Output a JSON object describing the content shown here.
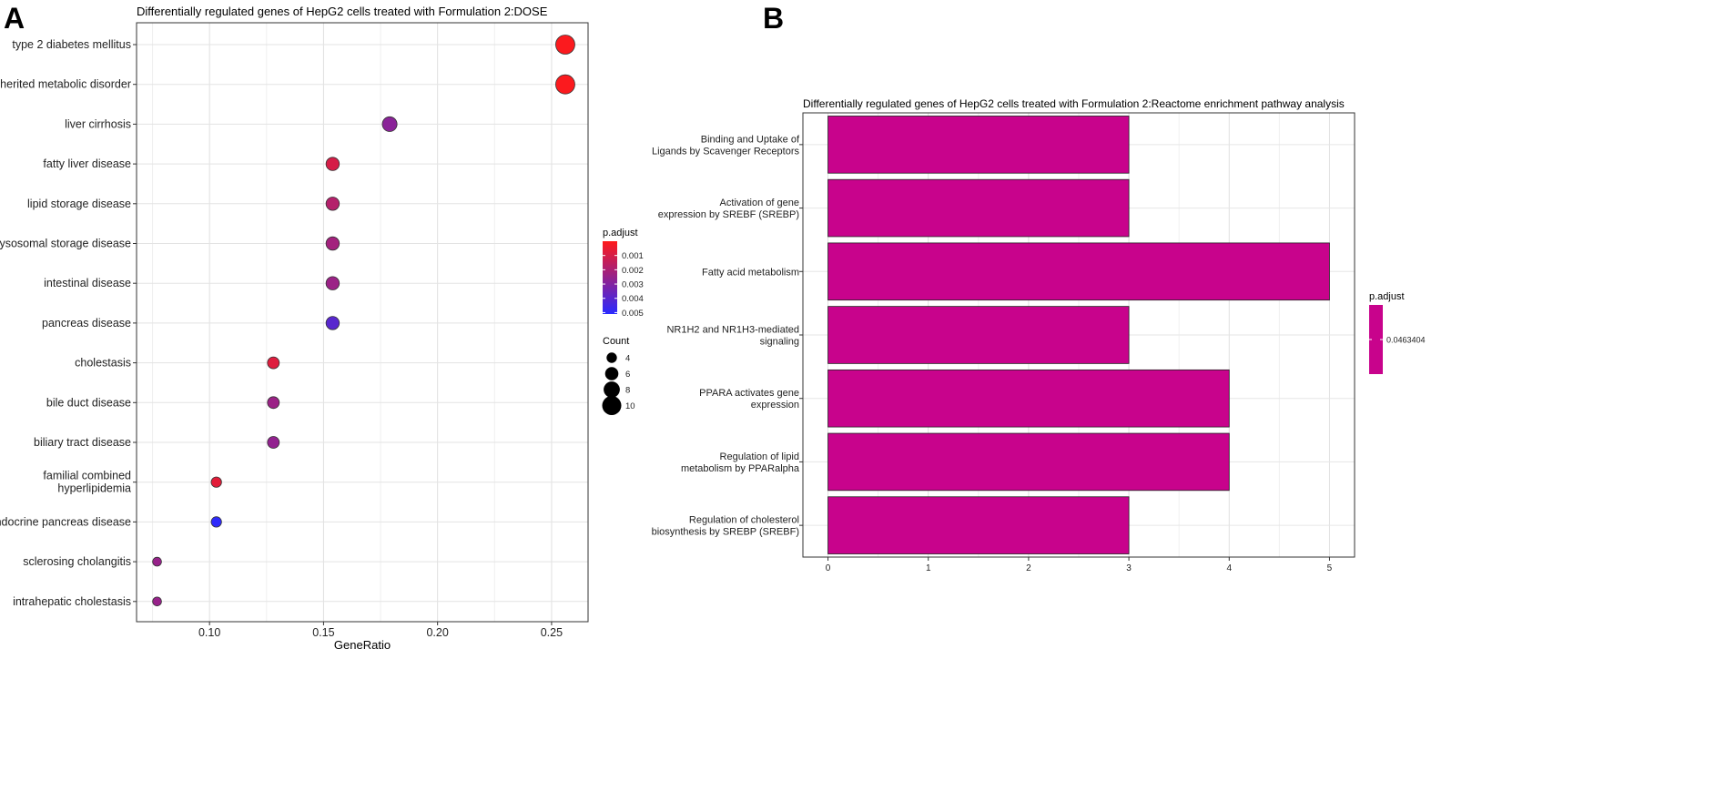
{
  "panels": {
    "a_label": "A",
    "b_label": "B"
  },
  "chart_data": [
    {
      "type": "scatter",
      "title": "Differentially regulated genes of HepG2 cells treated with Formulation 2:DOSE",
      "xlabel": "GeneRatio",
      "ylabel": "",
      "xlim": [
        0.068,
        0.266
      ],
      "xticks": [
        0.1,
        0.15,
        0.2,
        0.25
      ],
      "xtick_labels": [
        "0.10",
        "0.15",
        "0.20",
        "0.25"
      ],
      "categories": [
        "type 2 diabetes mellitus",
        "inherited metabolic disorder",
        "liver cirrhosis",
        "fatty liver disease",
        "lipid storage disease",
        "lysosomal storage disease",
        "intestinal disease",
        "pancreas disease",
        "cholestasis",
        "bile duct disease",
        "biliary tract disease",
        "familial combined\nhyperlipidemia",
        "endocrine pancreas disease",
        "sclerosing cholangitis",
        "intrahepatic cholestasis"
      ],
      "gene_ratio": [
        0.256,
        0.256,
        0.179,
        0.154,
        0.154,
        0.154,
        0.154,
        0.154,
        0.128,
        0.128,
        0.128,
        0.103,
        0.103,
        0.077,
        0.077
      ],
      "count": [
        10,
        10,
        7,
        6,
        6,
        6,
        6,
        6,
        5,
        5,
        5,
        4,
        4,
        3,
        3
      ],
      "p_adjust": [
        0.0001,
        0.0001,
        0.0028,
        0.001,
        0.0018,
        0.0022,
        0.0024,
        0.004,
        0.0008,
        0.0024,
        0.0026,
        0.0007,
        0.005,
        0.0025,
        0.0025
      ],
      "color_legend": {
        "title": "p.adjust",
        "ticks": [
          0.001,
          0.002,
          0.003,
          0.004,
          0.005
        ],
        "tick_labels": [
          "0.001",
          "0.002",
          "0.003",
          "0.004",
          "0.005"
        ],
        "range": [
          0.0,
          0.0051
        ],
        "low_color": "#ff1a1a",
        "high_color": "#2a2aff"
      },
      "size_legend": {
        "title": "Count",
        "values": [
          4,
          6,
          8,
          10
        ],
        "labels": [
          "4",
          "6",
          "8",
          "10"
        ]
      },
      "legend_position": "right",
      "grid": true
    },
    {
      "type": "bar",
      "orientation": "horizontal",
      "title": "Differentially regulated genes of HepG2 cells treated with Formulation 2:Reactome enrichment pathway analysis",
      "xlabel": "",
      "ylabel": "",
      "xlim": [
        -0.25,
        5.25
      ],
      "xticks": [
        0,
        1,
        2,
        3,
        4,
        5
      ],
      "xtick_labels": [
        "0",
        "1",
        "2",
        "3",
        "4",
        "5"
      ],
      "categories": [
        "Binding and Uptake of\nLigands by Scavenger Receptors",
        "Activation of gene\nexpression by SREBF (SREBP)",
        "Fatty acid metabolism",
        "NR1H2 and NR1H3-mediated\nsignaling",
        "PPARA activates gene\nexpression",
        "Regulation of lipid\nmetabolism by PPARalpha",
        "Regulation of cholesterol\nbiosynthesis by SREBP (SREBF)"
      ],
      "values": [
        3,
        3,
        5,
        3,
        4,
        4,
        3
      ],
      "bar_color": "#c8038c",
      "color_legend": {
        "title": "p.adjust",
        "tick_labels": [
          "0.0463404"
        ],
        "color": "#c8038c"
      },
      "legend_position": "right",
      "grid": true
    }
  ]
}
